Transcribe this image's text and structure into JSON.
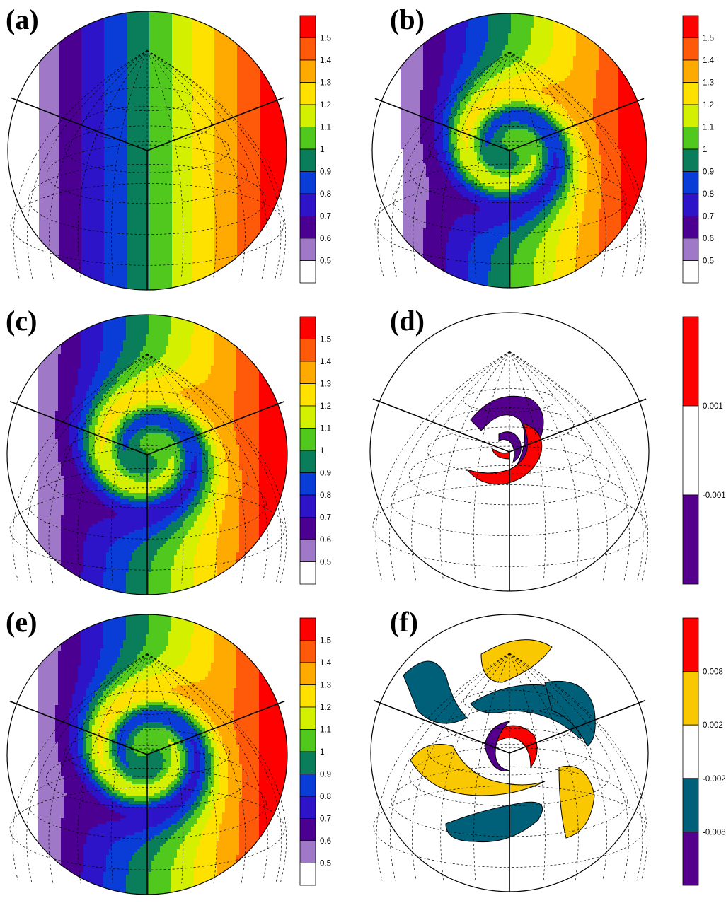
{
  "panels": [
    {
      "id": "a",
      "label": "(a)",
      "kind": "field",
      "field": "stripes",
      "colorbar": {
        "labels": [
          "1.5",
          "1.4",
          "1.3",
          "1.2",
          "1.1",
          "1",
          "0.9",
          "0.8",
          "0.7",
          "0.6",
          "0.5"
        ]
      }
    },
    {
      "id": "b",
      "label": "(b)",
      "kind": "field",
      "field": "vortex",
      "twist": 7.5,
      "colorbar": {
        "labels": [
          "1.5",
          "1.4",
          "1.3",
          "1.2",
          "1.1",
          "1",
          "0.9",
          "0.8",
          "0.7",
          "0.6",
          "0.5"
        ]
      }
    },
    {
      "id": "c",
      "label": "(c)",
      "kind": "field",
      "field": "vortex",
      "twist": 7.5,
      "colorbar": {
        "labels": [
          "1.5",
          "1.4",
          "1.3",
          "1.2",
          "1.1",
          "1",
          "0.9",
          "0.8",
          "0.7",
          "0.6",
          "0.5"
        ]
      }
    },
    {
      "id": "d",
      "label": "(d)",
      "kind": "error",
      "blob_set": "d",
      "colorbar": {
        "labels": [
          "0.001",
          "-0.001"
        ]
      }
    },
    {
      "id": "e",
      "label": "(e)",
      "kind": "field",
      "field": "vortex",
      "twist": 8.5,
      "colorbar": {
        "labels": [
          "1.5",
          "1.4",
          "1.3",
          "1.2",
          "1.1",
          "1",
          "0.9",
          "0.8",
          "0.7",
          "0.6",
          "0.5"
        ]
      }
    },
    {
      "id": "f",
      "label": "(f)",
      "kind": "error",
      "blob_set": "f",
      "colorbar": {
        "labels": [
          "0.008",
          "0.002",
          "-0.002",
          "-0.008"
        ]
      }
    }
  ],
  "chart_data": [
    {
      "type": "heatmap",
      "panel": "a",
      "title": "",
      "levels": [
        0.5,
        0.6,
        0.7,
        0.8,
        0.9,
        1.0,
        1.1,
        1.2,
        1.3,
        1.4,
        1.5
      ],
      "colorbar_labels": [
        "1.5",
        "1.4",
        "1.3",
        "1.2",
        "1.1",
        "1",
        "0.9",
        "0.8",
        "0.7",
        "0.6",
        "0.5"
      ]
    },
    {
      "type": "heatmap",
      "panel": "b",
      "title": "",
      "levels": [
        0.5,
        0.6,
        0.7,
        0.8,
        0.9,
        1.0,
        1.1,
        1.2,
        1.3,
        1.4,
        1.5
      ],
      "colorbar_labels": [
        "1.5",
        "1.4",
        "1.3",
        "1.2",
        "1.1",
        "1",
        "0.9",
        "0.8",
        "0.7",
        "0.6",
        "0.5"
      ]
    },
    {
      "type": "heatmap",
      "panel": "c",
      "title": "",
      "levels": [
        0.5,
        0.6,
        0.7,
        0.8,
        0.9,
        1.0,
        1.1,
        1.2,
        1.3,
        1.4,
        1.5
      ],
      "colorbar_labels": [
        "1.5",
        "1.4",
        "1.3",
        "1.2",
        "1.1",
        "1",
        "0.9",
        "0.8",
        "0.7",
        "0.6",
        "0.5"
      ]
    },
    {
      "type": "heatmap",
      "panel": "d",
      "title": "",
      "levels": [
        -0.001,
        0.001
      ],
      "colorbar_labels": [
        "0.001",
        "-0.001"
      ]
    },
    {
      "type": "heatmap",
      "panel": "e",
      "title": "",
      "levels": [
        0.5,
        0.6,
        0.7,
        0.8,
        0.9,
        1.0,
        1.1,
        1.2,
        1.3,
        1.4,
        1.5
      ],
      "colorbar_labels": [
        "1.5",
        "1.4",
        "1.3",
        "1.2",
        "1.1",
        "1",
        "0.9",
        "0.8",
        "0.7",
        "0.6",
        "0.5"
      ]
    },
    {
      "type": "heatmap",
      "panel": "f",
      "title": "",
      "levels": [
        -0.008,
        -0.002,
        0.002,
        0.008
      ],
      "colorbar_labels": [
        "0.008",
        "0.002",
        "-0.002",
        "-0.008"
      ]
    }
  ],
  "colors": {
    "field_palette_top_to_bottom": [
      "#ff0000",
      "#ff5a0a",
      "#ffaa00",
      "#ffe100",
      "#d2f000",
      "#50c81e",
      "#0a7d5a",
      "#0a3cd7",
      "#2d14c8",
      "#4b0091",
      "#a078c8",
      "#ffffff"
    ],
    "error_d": {
      "positive": "#ff0000",
      "neutral": "#ffffff",
      "negative": "#55008c"
    },
    "error_f": {
      "strong_positive": "#ff0000",
      "positive": "#fac800",
      "neutral": "#ffffff",
      "negative": "#00607a",
      "strong_negative": "#55008c"
    }
  }
}
